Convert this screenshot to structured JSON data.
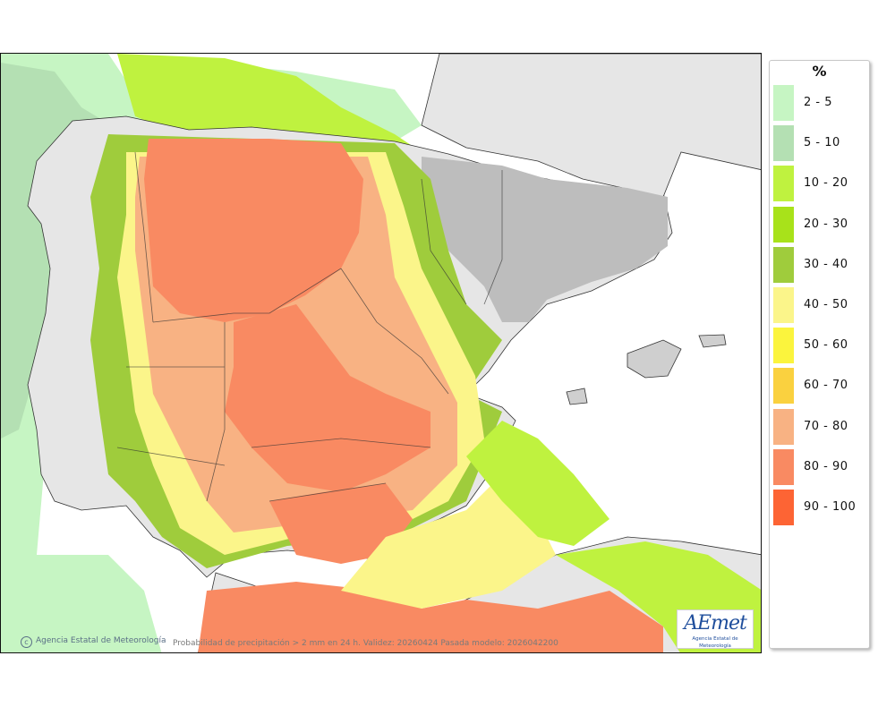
{
  "map": {
    "description_credit": "Agencia Estatal de Meteorología",
    "model_caption": "Probabilidad de precipitación > 2 mm en 24 h. Validez: 20260424 Pasada modelo: 2026042200",
    "logo_text": "AEmet",
    "logo_subtitle": "Agencia Estatal de Meteorología"
  },
  "legend": {
    "unit": "%",
    "entries": [
      {
        "label": "2 - 5",
        "color": "#c6f5c3"
      },
      {
        "label": "5 - 10",
        "color": "#b4e0b3"
      },
      {
        "label": "10 - 20",
        "color": "#bff23f"
      },
      {
        "label": "20 - 30",
        "color": "#a8e21a"
      },
      {
        "label": "30 - 40",
        "color": "#9fcc3c"
      },
      {
        "label": "40 - 50",
        "color": "#fbf58a"
      },
      {
        "label": "50 - 60",
        "color": "#fbf43d"
      },
      {
        "label": "60 - 70",
        "color": "#fad13f"
      },
      {
        "label": "70 - 80",
        "color": "#f8b283"
      },
      {
        "label": "80 - 90",
        "color": "#f98a62"
      },
      {
        "label": "90 - 100",
        "color": "#fd6434"
      }
    ]
  }
}
